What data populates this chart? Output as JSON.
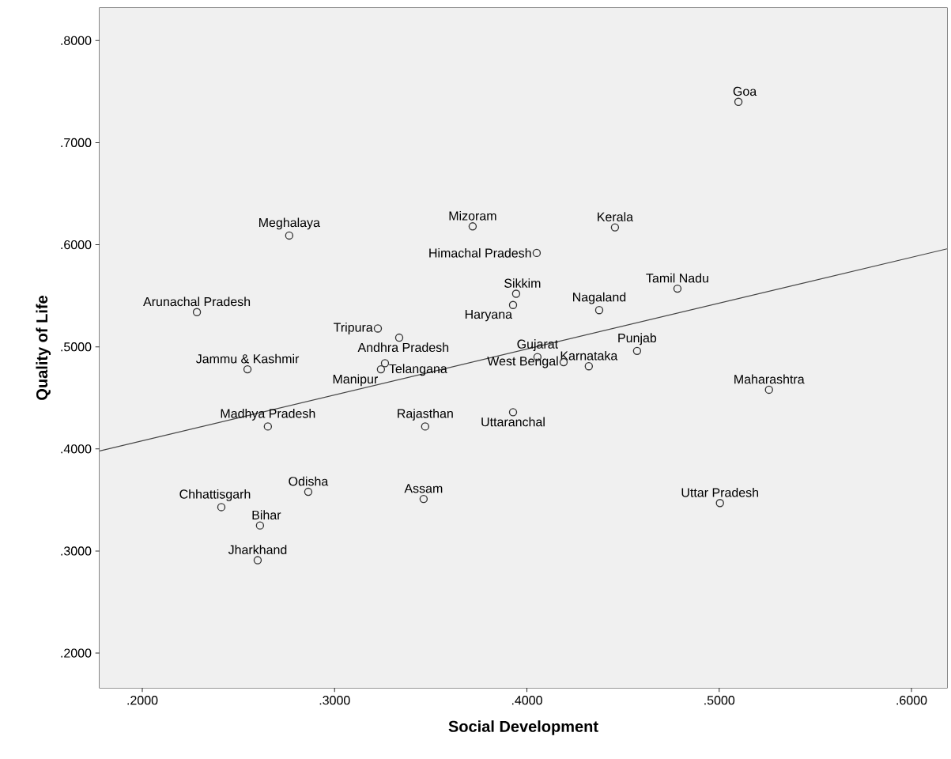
{
  "chart_data": {
    "type": "scatter",
    "xlabel": "Social Development",
    "ylabel": "Quality of Life",
    "xlim": [
      0.1778,
      0.6185
    ],
    "ylim": [
      0.166,
      0.832
    ],
    "xticks": [
      {
        "value": 0.2,
        "label": ".2000"
      },
      {
        "value": 0.3,
        "label": ".3000"
      },
      {
        "value": 0.4,
        "label": ".4000"
      },
      {
        "value": 0.5,
        "label": ".5000"
      },
      {
        "value": 0.6,
        "label": ".6000"
      }
    ],
    "yticks": [
      {
        "value": 0.2,
        "label": ".2000"
      },
      {
        "value": 0.3,
        "label": ".3000"
      },
      {
        "value": 0.4,
        "label": ".4000"
      },
      {
        "value": 0.5,
        "label": ".5000"
      },
      {
        "value": 0.6,
        "label": ".6000"
      },
      {
        "value": 0.7,
        "label": ".7000"
      },
      {
        "value": 0.8,
        "label": ".8000"
      }
    ],
    "marker": "circle",
    "series": [
      {
        "color": "#333333",
        "x": [
          0.51,
          0.2764,
          0.3718,
          0.4458,
          0.4051,
          0.4783,
          0.3944,
          0.3928,
          0.4376,
          0.2284,
          0.3225,
          0.3336,
          0.3262,
          0.3241,
          0.2547,
          0.4055,
          0.4573,
          0.4191,
          0.4322,
          0.5259,
          0.2653,
          0.3471,
          0.3928,
          0.2863,
          0.2411,
          0.3463,
          0.5004,
          0.2612,
          0.26
        ],
        "values": [
          0.74,
          0.609,
          0.618,
          0.617,
          0.592,
          0.557,
          0.552,
          0.541,
          0.536,
          0.534,
          0.518,
          0.509,
          0.484,
          0.478,
          0.478,
          0.49,
          0.496,
          0.485,
          0.481,
          0.458,
          0.422,
          0.422,
          0.436,
          0.358,
          0.343,
          0.351,
          0.347,
          0.325,
          0.291
        ]
      },
      {
        "type": "line",
        "color": "#444444",
        "marker": "none",
        "line_style": "solid",
        "x": [
          0.1778,
          0.6185
        ],
        "values": [
          0.398,
          0.596
        ]
      }
    ],
    "annotations": [
      {
        "text": "Goa",
        "x": 0.51,
        "y": 0.74
      },
      {
        "text": "Meghalaya",
        "x": 0.2764,
        "y": 0.609
      },
      {
        "text": "Mizoram",
        "x": 0.3718,
        "y": 0.618
      },
      {
        "text": "Kerala",
        "x": 0.4458,
        "y": 0.617
      },
      {
        "text": "Himachal Pradesh",
        "x": 0.4051,
        "y": 0.592
      },
      {
        "text": "Tamil Nadu",
        "x": 0.4783,
        "y": 0.557
      },
      {
        "text": "Sikkim",
        "x": 0.3944,
        "y": 0.552
      },
      {
        "text": "Haryana",
        "x": 0.3928,
        "y": 0.541
      },
      {
        "text": "Nagaland",
        "x": 0.4376,
        "y": 0.536
      },
      {
        "text": "Arunachal Pradesh",
        "x": 0.2284,
        "y": 0.534
      },
      {
        "text": "Tripura",
        "x": 0.3225,
        "y": 0.518
      },
      {
        "text": "Andhra Pradesh",
        "x": 0.3336,
        "y": 0.509
      },
      {
        "text": "Telangana",
        "x": 0.3262,
        "y": 0.484
      },
      {
        "text": "Manipur",
        "x": 0.3241,
        "y": 0.478
      },
      {
        "text": "Jammu & Kashmir",
        "x": 0.2547,
        "y": 0.478
      },
      {
        "text": "Gujarat",
        "x": 0.4055,
        "y": 0.49
      },
      {
        "text": "Punjab",
        "x": 0.4573,
        "y": 0.496
      },
      {
        "text": "West Bengal",
        "x": 0.4191,
        "y": 0.485
      },
      {
        "text": "Karnataka",
        "x": 0.4322,
        "y": 0.481
      },
      {
        "text": "Maharashtra",
        "x": 0.5259,
        "y": 0.458
      },
      {
        "text": "Madhya Pradesh",
        "x": 0.2653,
        "y": 0.422
      },
      {
        "text": "Rajasthan",
        "x": 0.3471,
        "y": 0.422
      },
      {
        "text": "Uttaranchal",
        "x": 0.3928,
        "y": 0.436
      },
      {
        "text": "Odisha",
        "x": 0.2863,
        "y": 0.358
      },
      {
        "text": "Chhattisgarh",
        "x": 0.2411,
        "y": 0.343
      },
      {
        "text": "Assam",
        "x": 0.3463,
        "y": 0.351
      },
      {
        "text": "Uttar Pradesh",
        "x": 0.5004,
        "y": 0.347
      },
      {
        "text": "Bihar",
        "x": 0.2612,
        "y": 0.325
      },
      {
        "text": "Jharkhand",
        "x": 0.26,
        "y": 0.291
      }
    ]
  }
}
